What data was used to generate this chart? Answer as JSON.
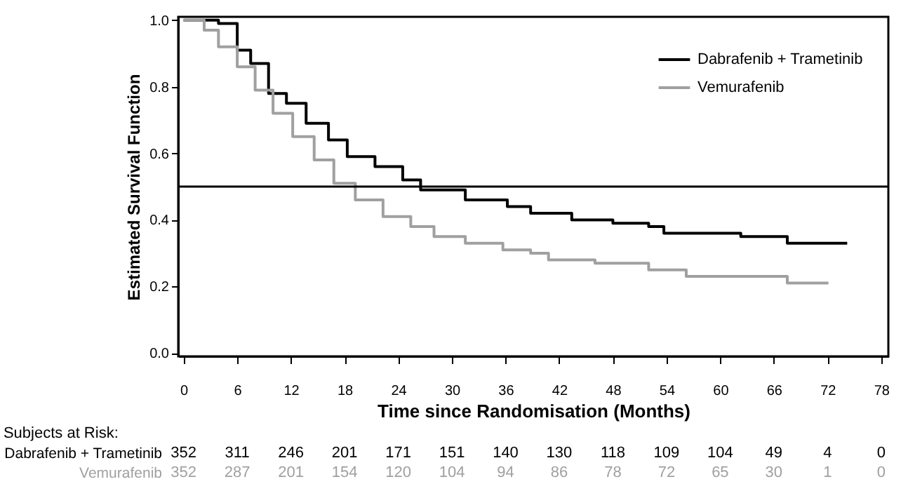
{
  "chart_data": {
    "type": "step",
    "xlabel": "Time since Randomisation (Months)",
    "ylabel": "Estimated Survival Function",
    "xlim": [
      -0.6,
      78.8
    ],
    "ylim": [
      -0.01,
      1.01
    ],
    "xticks": [
      0,
      6,
      12,
      18,
      24,
      30,
      36,
      42,
      48,
      54,
      60,
      66,
      72,
      78
    ],
    "yticks": [
      {
        "value": 0,
        "label": "0.0"
      },
      0.2,
      0.4,
      0.6,
      0.8,
      {
        "value": 1,
        "label": "1.0"
      }
    ],
    "legend": "top right",
    "grid": false,
    "line_style": "solid",
    "ref_lines": [
      {
        "axis": "y",
        "value": 0.5,
        "color": "#000000"
      }
    ],
    "annotations": [
      "Subjects at Risk:",
      "352 311 246 201 171 151 140 130 118 109 104 49 4 0",
      "352 287 201 154 120 104 94 86 78 72 65 30 1 0"
    ],
    "series": [
      {
        "name": "Dabrafenib + Trametinib",
        "color": "#000000",
        "x": [
          0,
          3.9,
          6,
          7.5,
          9.5,
          11.5,
          13.7,
          16.2,
          18.3,
          21.4,
          24.5,
          26.5,
          31.5,
          36.2,
          38.8,
          43.4,
          48,
          52,
          53.7,
          58.3,
          62.3,
          67.5,
          74.2
        ],
        "values": [
          1.0,
          0.99,
          0.91,
          0.87,
          0.78,
          0.75,
          0.69,
          0.64,
          0.59,
          0.56,
          0.52,
          0.49,
          0.46,
          0.44,
          0.42,
          0.4,
          0.39,
          0.38,
          0.36,
          0.36,
          0.35,
          0.33,
          0.33
        ]
      },
      {
        "name": "Vemurafenib",
        "color": "#a0a0a0",
        "x": [
          0,
          2.3,
          3.9,
          6,
          8,
          10,
          12.2,
          14.6,
          16.8,
          19.2,
          22.3,
          25.4,
          28,
          31.5,
          35.7,
          38.8,
          40.8,
          46,
          52,
          56.2,
          62.3,
          67.5,
          72.1
        ],
        "values": [
          1.0,
          0.97,
          0.92,
          0.86,
          0.79,
          0.72,
          0.65,
          0.58,
          0.51,
          0.46,
          0.41,
          0.38,
          0.35,
          0.33,
          0.31,
          0.3,
          0.28,
          0.27,
          0.25,
          0.23,
          0.23,
          0.21,
          0.21
        ]
      }
    ]
  }
}
